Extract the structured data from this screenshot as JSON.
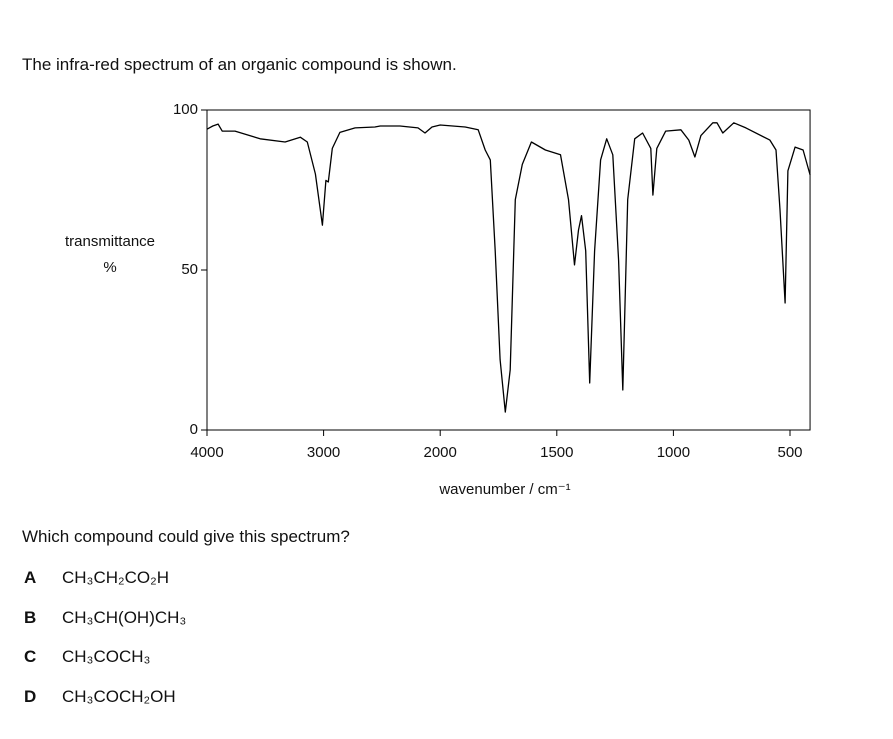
{
  "question": "The infra-red spectrum of an organic compound is shown.",
  "chart_data": {
    "type": "line",
    "y_label_line1": "transmittance",
    "y_label_line2": "%",
    "x_label": "wavenumber / cm⁻¹",
    "x": [
      4000,
      3950,
      3905,
      3870,
      3760,
      3545,
      3330,
      3200,
      3140,
      3070,
      3010,
      2980,
      2960,
      2925,
      2860,
      2730,
      2560,
      2515,
      2345,
      2190,
      2130,
      2070,
      2000,
      1893,
      1837,
      1807,
      1785,
      1764,
      1743,
      1721,
      1700,
      1678,
      1648,
      1609,
      1549,
      1484,
      1450,
      1424,
      1407,
      1394,
      1376,
      1359,
      1338,
      1312,
      1286,
      1260,
      1235,
      1217,
      1196,
      1166,
      1132,
      1097,
      1088,
      1071,
      1033,
      968,
      934,
      908,
      882,
      831,
      813,
      788,
      741,
      689,
      586,
      560,
      543,
      521,
      509,
      478,
      444,
      414
    ],
    "values": [
      94,
      95,
      95.6,
      93.4,
      93.4,
      91,
      90,
      91.5,
      90,
      80,
      64,
      78,
      77.5,
      88,
      93,
      94.4,
      94.7,
      95,
      95,
      94.4,
      92.8,
      94.7,
      95.3,
      94.7,
      93.8,
      87.5,
      84.4,
      56,
      22,
      5.6,
      18.8,
      72,
      83,
      90,
      87.5,
      86,
      72,
      51.6,
      62.5,
      67,
      56,
      14.7,
      56,
      84.4,
      91,
      86,
      53,
      12.5,
      72,
      91,
      92.8,
      88,
      73.4,
      88,
      93.4,
      93.8,
      90.6,
      85.3,
      92,
      96,
      96,
      92.8,
      96,
      94.4,
      90.6,
      87.5,
      68.8,
      39.7,
      81,
      88.4,
      87.5,
      79.7
    ],
    "color": "#000000",
    "xlim": [
      4000,
      414
    ],
    "xticks": [
      4000,
      3000,
      2000,
      1500,
      1000,
      500
    ],
    "ylim": [
      0,
      100
    ],
    "yticks": [
      0,
      50,
      100
    ]
  },
  "prompt": "Which compound could give this spectrum?",
  "options": [
    {
      "letter": "A",
      "formula": "CH₃CH₂CO₂H"
    },
    {
      "letter": "B",
      "formula": "CH₃CH(OH)CH₃"
    },
    {
      "letter": "C",
      "formula": "CH₃COCH₃"
    },
    {
      "letter": "D",
      "formula": "CH₃COCH₂OH"
    }
  ]
}
